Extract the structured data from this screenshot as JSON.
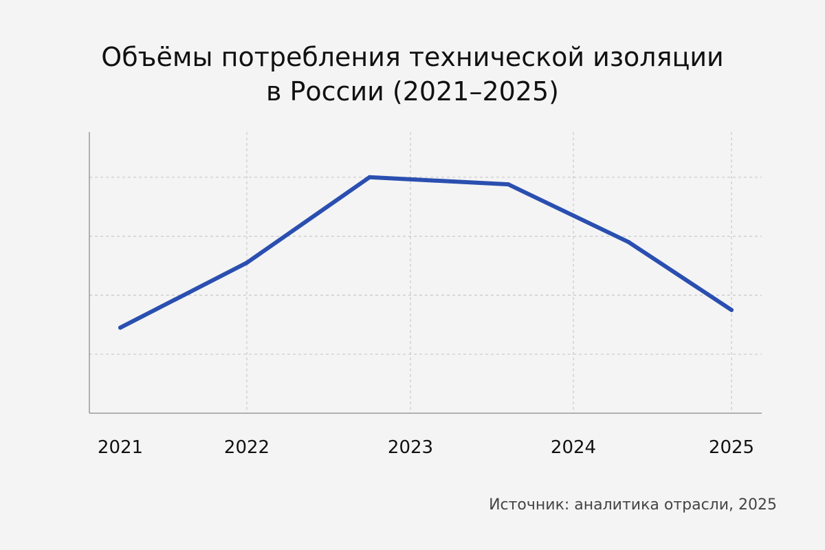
{
  "title_line1": "Объёмы потребления технической изоляции",
  "title_line2": "в России (2021–2025)",
  "source": "Источник: аналитика отрасли, 2025",
  "colors": {
    "line": "#2a4fb0",
    "grid": "#c8c8c8",
    "axis": "#9a9a9a",
    "background": "#f4f4f4"
  },
  "chart_data": {
    "type": "line",
    "title": "Объёмы потребления технической изоляции в России (2021–2025)",
    "xlabel": "",
    "ylabel": "",
    "x_ticks": [
      "2021",
      "2022",
      "2023",
      "2024",
      "2025"
    ],
    "xlim": [
      2021,
      2025
    ],
    "ylim": [
      0,
      5
    ],
    "y_gridlines": [
      1,
      2,
      3,
      4
    ],
    "grid": true,
    "legend": "none",
    "series": [
      {
        "x": [
          2021,
          2022,
          2022.75,
          2023.6,
          2024.35,
          2025
        ],
        "y": [
          1.45,
          2.55,
          4.0,
          3.88,
          2.9,
          1.75
        ]
      }
    ]
  }
}
